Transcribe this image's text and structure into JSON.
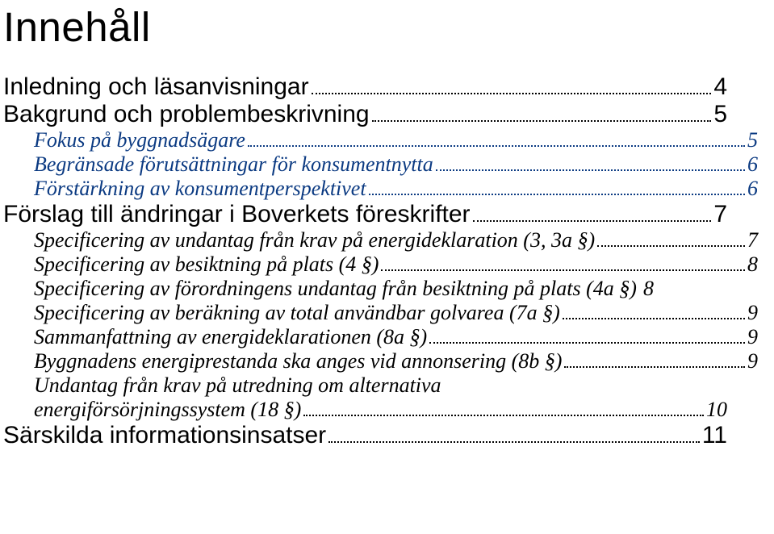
{
  "title": "Innehåll",
  "entries": [
    {
      "level": 0,
      "italic": false,
      "text": "Inledning och läsanvisningar",
      "page": "4",
      "cls": "lvl0"
    },
    {
      "level": 0,
      "italic": false,
      "text": "Bakgrund och problembeskrivning",
      "page": "5",
      "cls": "lvl0"
    },
    {
      "level": 1,
      "italic": true,
      "text": "Fokus på byggnadsägare",
      "page": "5",
      "cls": "lvl1"
    },
    {
      "level": 1,
      "italic": true,
      "text": "Begränsade förutsättningar för konsumentnytta",
      "page": "6",
      "cls": "lvl1"
    },
    {
      "level": 1,
      "italic": true,
      "text": "Förstärkning av konsumentperspektivet",
      "page": "6",
      "cls": "lvl1"
    },
    {
      "level": 0,
      "italic": false,
      "text": "Förslag till ändringar i Boverkets föreskrifter",
      "page": "7",
      "cls": "lvl0"
    },
    {
      "level": 2,
      "italic": true,
      "text": "Specificering av undantag från krav på energideklaration (3, 3a §)",
      "page": "7",
      "cls": "lvl2"
    },
    {
      "level": 2,
      "italic": true,
      "text": "Specificering av besiktning på plats (4 §)",
      "page": "8",
      "cls": "lvl2"
    },
    {
      "level": 2,
      "italic": true,
      "text": "Specificering av förordningens undantag från besiktning på plats (4a §)",
      "page": "8",
      "cls": "lvl2",
      "noleader": true
    },
    {
      "level": 2,
      "italic": true,
      "text": "Specificering av beräkning av total användbar golvarea (7a §)",
      "page": "9",
      "cls": "lvl2"
    },
    {
      "level": 2,
      "italic": true,
      "text": "Sammanfattning av energideklarationen (8a §)",
      "page": "9",
      "cls": "lvl2"
    },
    {
      "level": 2,
      "italic": true,
      "text": "Byggnadens energiprestanda ska anges vid annonsering (8b §)",
      "page": "9",
      "cls": "lvl2"
    },
    {
      "level": 2,
      "italic": true,
      "line1": "Undantag från krav på utredning om alternativa",
      "text": "energiförsörjningssystem (18 §)",
      "page": "10",
      "cls": "lvl2"
    },
    {
      "level": 0,
      "italic": false,
      "text": "Särskilda informationsinsatser",
      "page": "11",
      "cls": "lvl0"
    }
  ]
}
